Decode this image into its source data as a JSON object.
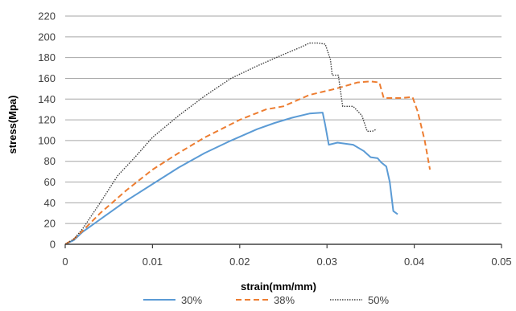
{
  "chart_data": {
    "type": "line",
    "xlabel": "strain(mm/mm)",
    "ylabel": "stress(Mpa)",
    "xlim": [
      0,
      0.05
    ],
    "ylim": [
      0,
      220
    ],
    "x_ticks": [
      "0",
      "0.01",
      "0.02",
      "0.03",
      "0.04",
      "0.05"
    ],
    "x_tick_values": [
      0,
      0.01,
      0.02,
      0.03,
      0.04,
      0.05
    ],
    "y_ticks": [
      "0",
      "20",
      "40",
      "60",
      "80",
      "100",
      "120",
      "140",
      "160",
      "180",
      "200",
      "220"
    ],
    "y_tick_values": [
      0,
      20,
      40,
      60,
      80,
      100,
      120,
      140,
      160,
      180,
      200,
      220
    ],
    "grid": "horizontal",
    "legend_position": "bottom",
    "series": [
      {
        "name": "30%",
        "color": "#5b9bd5",
        "style": "solid",
        "x": [
          0,
          0.001,
          0.002,
          0.003,
          0.005,
          0.007,
          0.01,
          0.013,
          0.016,
          0.019,
          0.022,
          0.024,
          0.026,
          0.028,
          0.0295,
          0.0298,
          0.0302,
          0.0312,
          0.033,
          0.0342,
          0.035,
          0.0358,
          0.0362,
          0.0368,
          0.0372,
          0.0376,
          0.0381
        ],
        "y": [
          0,
          4,
          12,
          18,
          30,
          42,
          58,
          74,
          88,
          100,
          111,
          117,
          122,
          126,
          127,
          115,
          96,
          98,
          96,
          90,
          84,
          83,
          79,
          75,
          60,
          32,
          29
        ]
      },
      {
        "name": "38%",
        "color": "#ed7d31",
        "style": "dashed",
        "x": [
          0,
          0.001,
          0.002,
          0.004,
          0.007,
          0.01,
          0.013,
          0.016,
          0.02,
          0.023,
          0.025,
          0.028,
          0.031,
          0.0335,
          0.035,
          0.036,
          0.0362,
          0.0365,
          0.037,
          0.0385,
          0.0398,
          0.0404,
          0.0412,
          0.0418
        ],
        "y": [
          0,
          5,
          13,
          30,
          52,
          72,
          88,
          103,
          120,
          130,
          133,
          144,
          150,
          156,
          157,
          156,
          150,
          141,
          141,
          141,
          142,
          128,
          100,
          72
        ]
      },
      {
        "name": "50%",
        "color": "#404040",
        "style": "dotted",
        "x": [
          0,
          0.001,
          0.002,
          0.004,
          0.006,
          0.008,
          0.01,
          0.013,
          0.016,
          0.019,
          0.022,
          0.025,
          0.027,
          0.028,
          0.029,
          0.0298,
          0.0304,
          0.0306,
          0.0313,
          0.0316,
          0.0318,
          0.0325,
          0.033,
          0.034,
          0.0346,
          0.0352,
          0.0357
        ],
        "y": [
          0,
          5,
          15,
          40,
          66,
          84,
          103,
          124,
          143,
          160,
          172,
          183,
          190,
          194,
          194,
          193,
          178,
          163,
          163,
          145,
          133,
          133,
          133,
          124,
          109,
          109,
          111
        ]
      }
    ]
  }
}
